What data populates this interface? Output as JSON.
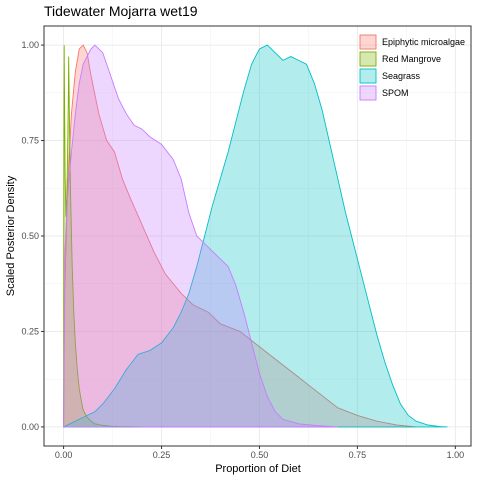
{
  "chart_data": {
    "type": "area",
    "title": "Tidewater Mojarra wet19",
    "xlabel": "Proportion of Diet",
    "ylabel": "Scaled Posterior Density",
    "xlim": [
      -0.05,
      1.04
    ],
    "ylim": [
      -0.05,
      1.05
    ],
    "x_ticks": [
      0,
      0.25,
      0.5,
      0.75,
      1
    ],
    "x_tick_labels": [
      "0.00",
      "0.25",
      "0.50",
      "0.75",
      "1.00"
    ],
    "y_ticks": [
      0,
      0.25,
      0.5,
      0.75,
      1
    ],
    "y_tick_labels": [
      "0.00",
      "0.25",
      "0.50",
      "0.75",
      "1.00"
    ],
    "grid": true,
    "legend_position": "top-right",
    "series": [
      {
        "name": "Epiphytic microalgae",
        "fill": "#F8766D",
        "stroke": "#F8766D",
        "points": [
          [
            0.0,
            0.0
          ],
          [
            0.003,
            0.35
          ],
          [
            0.01,
            0.62
          ],
          [
            0.02,
            0.82
          ],
          [
            0.03,
            0.93
          ],
          [
            0.04,
            0.99
          ],
          [
            0.05,
            1.0
          ],
          [
            0.06,
            0.98
          ],
          [
            0.07,
            0.92
          ],
          [
            0.09,
            0.82
          ],
          [
            0.11,
            0.75
          ],
          [
            0.13,
            0.72
          ],
          [
            0.15,
            0.65
          ],
          [
            0.17,
            0.6
          ],
          [
            0.2,
            0.53
          ],
          [
            0.23,
            0.46
          ],
          [
            0.26,
            0.4
          ],
          [
            0.3,
            0.35
          ],
          [
            0.33,
            0.32
          ],
          [
            0.37,
            0.3
          ],
          [
            0.4,
            0.27
          ],
          [
            0.45,
            0.25
          ],
          [
            0.5,
            0.21
          ],
          [
            0.55,
            0.17
          ],
          [
            0.6,
            0.13
          ],
          [
            0.65,
            0.09
          ],
          [
            0.7,
            0.05
          ],
          [
            0.75,
            0.03
          ],
          [
            0.8,
            0.015
          ],
          [
            0.85,
            0.005
          ],
          [
            0.9,
            0.0
          ]
        ]
      },
      {
        "name": "Red Mangrove",
        "fill": "#7CAE00",
        "stroke": "#7CAE00",
        "points": [
          [
            0.0,
            0.0
          ],
          [
            0.0005,
            0.5
          ],
          [
            0.001,
            0.85
          ],
          [
            0.0015,
            1.0
          ],
          [
            0.0025,
            0.85
          ],
          [
            0.004,
            0.65
          ],
          [
            0.006,
            0.55
          ],
          [
            0.008,
            0.6
          ],
          [
            0.01,
            0.7
          ],
          [
            0.012,
            0.85
          ],
          [
            0.013,
            0.97
          ],
          [
            0.015,
            0.8
          ],
          [
            0.018,
            0.6
          ],
          [
            0.022,
            0.42
          ],
          [
            0.026,
            0.3
          ],
          [
            0.03,
            0.22
          ],
          [
            0.035,
            0.15
          ],
          [
            0.04,
            0.1
          ],
          [
            0.045,
            0.07
          ],
          [
            0.05,
            0.045
          ],
          [
            0.06,
            0.025
          ],
          [
            0.07,
            0.015
          ],
          [
            0.08,
            0.008
          ],
          [
            0.1,
            0.004
          ],
          [
            0.12,
            0.002
          ],
          [
            0.15,
            0.001
          ],
          [
            0.2,
            0.0
          ]
        ]
      },
      {
        "name": "Seagrass",
        "fill": "#00BFC4",
        "stroke": "#00BFC4",
        "points": [
          [
            0.0,
            0.0
          ],
          [
            0.02,
            0.01
          ],
          [
            0.05,
            0.025
          ],
          [
            0.08,
            0.04
          ],
          [
            0.1,
            0.06
          ],
          [
            0.13,
            0.1
          ],
          [
            0.16,
            0.15
          ],
          [
            0.19,
            0.19
          ],
          [
            0.22,
            0.2
          ],
          [
            0.25,
            0.22
          ],
          [
            0.28,
            0.26
          ],
          [
            0.3,
            0.3
          ],
          [
            0.32,
            0.35
          ],
          [
            0.34,
            0.42
          ],
          [
            0.36,
            0.5
          ],
          [
            0.38,
            0.58
          ],
          [
            0.4,
            0.65
          ],
          [
            0.42,
            0.72
          ],
          [
            0.44,
            0.8
          ],
          [
            0.46,
            0.88
          ],
          [
            0.48,
            0.95
          ],
          [
            0.5,
            0.99
          ],
          [
            0.52,
            1.0
          ],
          [
            0.54,
            0.98
          ],
          [
            0.56,
            0.96
          ],
          [
            0.58,
            0.97
          ],
          [
            0.6,
            0.96
          ],
          [
            0.62,
            0.95
          ],
          [
            0.64,
            0.9
          ],
          [
            0.66,
            0.83
          ],
          [
            0.68,
            0.74
          ],
          [
            0.7,
            0.65
          ],
          [
            0.72,
            0.56
          ],
          [
            0.74,
            0.48
          ],
          [
            0.76,
            0.4
          ],
          [
            0.78,
            0.32
          ],
          [
            0.8,
            0.24
          ],
          [
            0.82,
            0.17
          ],
          [
            0.84,
            0.11
          ],
          [
            0.86,
            0.06
          ],
          [
            0.88,
            0.03
          ],
          [
            0.9,
            0.015
          ],
          [
            0.93,
            0.005
          ],
          [
            0.96,
            0.001
          ],
          [
            0.98,
            0.0
          ]
        ]
      },
      {
        "name": "SPOM",
        "fill": "#C77CFF",
        "stroke": "#C77CFF",
        "points": [
          [
            0.0,
            0.0
          ],
          [
            0.003,
            0.45
          ],
          [
            0.01,
            0.6
          ],
          [
            0.02,
            0.72
          ],
          [
            0.03,
            0.82
          ],
          [
            0.04,
            0.9
          ],
          [
            0.05,
            0.95
          ],
          [
            0.07,
            0.99
          ],
          [
            0.08,
            1.0
          ],
          [
            0.1,
            0.98
          ],
          [
            0.12,
            0.92
          ],
          [
            0.14,
            0.86
          ],
          [
            0.16,
            0.82
          ],
          [
            0.18,
            0.79
          ],
          [
            0.2,
            0.78
          ],
          [
            0.22,
            0.76
          ],
          [
            0.25,
            0.74
          ],
          [
            0.28,
            0.7
          ],
          [
            0.3,
            0.65
          ],
          [
            0.32,
            0.56
          ],
          [
            0.34,
            0.5
          ],
          [
            0.36,
            0.48
          ],
          [
            0.38,
            0.46
          ],
          [
            0.4,
            0.44
          ],
          [
            0.42,
            0.42
          ],
          [
            0.44,
            0.37
          ],
          [
            0.46,
            0.3
          ],
          [
            0.48,
            0.22
          ],
          [
            0.5,
            0.14
          ],
          [
            0.52,
            0.08
          ],
          [
            0.54,
            0.04
          ],
          [
            0.56,
            0.02
          ],
          [
            0.6,
            0.008
          ],
          [
            0.65,
            0.003
          ],
          [
            0.7,
            0.0
          ]
        ]
      }
    ]
  }
}
